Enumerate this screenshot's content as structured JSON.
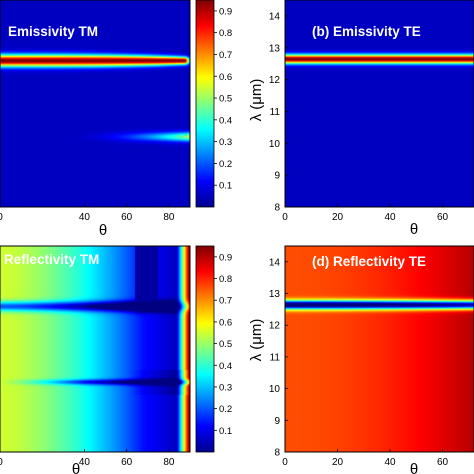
{
  "chart_data": [
    {
      "type": "heatmap",
      "title": "Emissivity TM",
      "xlabel": "θ",
      "xlim": [
        0,
        90
      ],
      "xticks": [
        "0",
        "40",
        "60",
        "80"
      ],
      "bands": [
        {
          "lambda": 12.6,
          "sigma": 0.13,
          "peak": 0.9,
          "theta_end": 88
        },
        {
          "lambda": 10.2,
          "sigma": 0.1,
          "peak": 0.45,
          "theta_start": 30,
          "theta_end": 90
        }
      ],
      "colorbar": {
        "min": 0,
        "max": 0.95,
        "ticks": [
          "0.1",
          "0.2",
          "0.3",
          "0.4",
          "0.5",
          "0.6",
          "0.7",
          "0.8",
          "0.9"
        ]
      }
    },
    {
      "type": "heatmap",
      "title": "(b) Emissivity TE",
      "xlabel": "θ",
      "ylabel": "λ (μm)",
      "xlim": [
        0,
        90
      ],
      "ylim": [
        8,
        14.5
      ],
      "xticks": [
        "0",
        "20",
        "40",
        "60"
      ],
      "yticks": [
        "8",
        "9",
        "10",
        "11",
        "12",
        "13",
        "14"
      ],
      "bands": [
        {
          "lambda": 12.65,
          "sigma": 0.1,
          "peak": 0.9
        }
      ]
    },
    {
      "type": "heatmap",
      "title": "Reflectivity TM",
      "xlabel": "θ",
      "xlim": [
        0,
        90
      ],
      "xticks": [
        "0",
        "40",
        "60",
        "80"
      ],
      "values_description": "reflectivity increases from about 0.55 near normal incidence to a minimum near 84° then rises to 0.95; dips at λ = 12.6 and 10.2",
      "colorbar": {
        "min": 0,
        "max": 0.95,
        "ticks": [
          "0.1",
          "0.2",
          "0.3",
          "0.4",
          "0.5",
          "0.6",
          "0.7",
          "0.8",
          "0.9"
        ]
      }
    },
    {
      "type": "heatmap",
      "title": "(d) Reflectivity TE",
      "xlabel": "θ",
      "ylabel": "λ (μm)",
      "xlim": [
        0,
        90
      ],
      "ylim": [
        8,
        14.5
      ],
      "xticks": [
        "0",
        "20",
        "40",
        "60"
      ],
      "yticks": [
        "8",
        "9",
        "10",
        "11",
        "12",
        "13",
        "14"
      ],
      "bands": [
        {
          "lambda": 12.65,
          "sigma": 0.1,
          "depth": 0.85
        }
      ]
    }
  ]
}
